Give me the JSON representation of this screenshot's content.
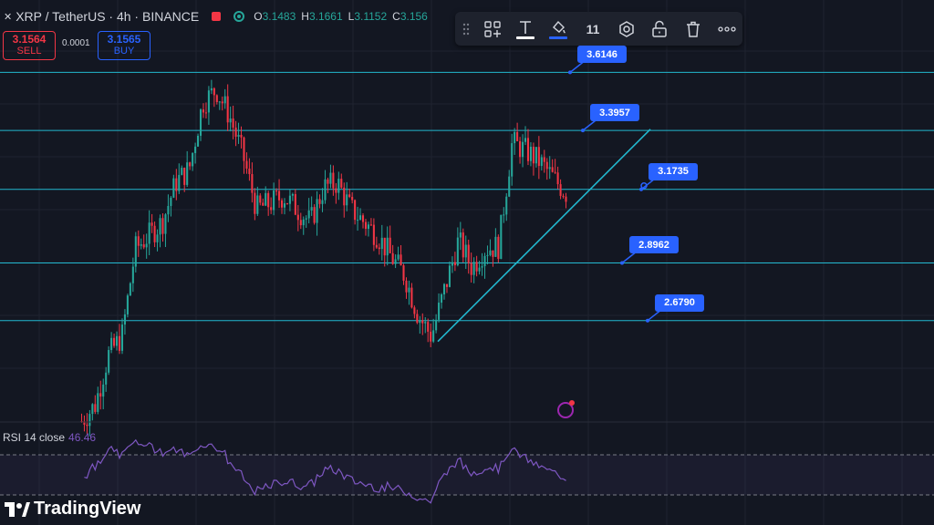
{
  "header": {
    "symbol": "XRP / TetherUS · 4h · BINANCE",
    "ohlc": [
      {
        "k": "O",
        "v": "3.1483"
      },
      {
        "k": "H",
        "v": "3.1661"
      },
      {
        "k": "L",
        "v": "3.1152"
      },
      {
        "k": "C",
        "v": "3.156"
      }
    ]
  },
  "trade": {
    "sell_price": "3.1564",
    "sell_label": "SELL",
    "spread": "0.0001",
    "buy_price": "3.1565",
    "buy_label": "BUY"
  },
  "toolbar": {
    "items": [
      "drag-handle",
      "templates-icon",
      "text-icon",
      "fill-color-icon",
      "11",
      "settings-icon",
      "lock-icon",
      "trash-icon",
      "more-icon"
    ],
    "line_width_value": "11"
  },
  "rsi": {
    "label": "RSI 14 close",
    "value": "46.46"
  },
  "brand": {
    "name": "TradingView"
  },
  "colors": {
    "background": "#131722",
    "up": "#26a69a",
    "down": "#f23645",
    "levels": "#22b8cf",
    "tag": "#2962ff",
    "rsi": "#7e57c2"
  },
  "chart_data": {
    "type": "candlestick",
    "symbol": "XRP / TetherUS",
    "interval": "4h",
    "exchange": "BINANCE",
    "y_range": [
      2.3,
      3.75
    ],
    "horizontal_levels": [
      3.6146,
      3.3957,
      3.1735,
      2.8962,
      2.679
    ],
    "trendline": {
      "from": 2.6,
      "to": 3.4
    },
    "approx_close_path": [
      2.3,
      2.36,
      2.55,
      2.62,
      2.95,
      3.0,
      3.05,
      3.2,
      3.25,
      3.5,
      3.55,
      3.45,
      3.3,
      3.1,
      3.12,
      3.15,
      3.1,
      3.05,
      3.18,
      3.2,
      3.1,
      3.05,
      3.0,
      2.92,
      2.85,
      2.7,
      2.62,
      2.8,
      2.98,
      2.88,
      2.95,
      2.96,
      3.35,
      3.32,
      3.28,
      3.22,
      3.16
    ],
    "rsi": {
      "period": 14,
      "source": "close",
      "last": 46.46,
      "bands": [
        70,
        30
      ]
    }
  }
}
